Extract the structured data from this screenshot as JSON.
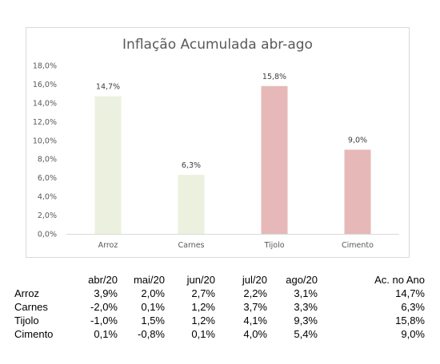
{
  "chart_data": {
    "type": "bar",
    "title": "Inflação Acumulada abr-ago",
    "categories": [
      "Arroz",
      "Carnes",
      "Tijolo",
      "Cimento"
    ],
    "values": [
      14.7,
      6.3,
      15.8,
      9.0
    ],
    "data_labels": [
      "14,7%",
      "6,3%",
      "15,8%",
      "9,0%"
    ],
    "bar_colors": [
      "#ebf1de",
      "#ebf1de",
      "#e6b9b8",
      "#e6b9b8"
    ],
    "ylim": [
      0,
      18
    ],
    "yticks": [
      0,
      2,
      4,
      6,
      8,
      10,
      12,
      14,
      16,
      18
    ],
    "ytick_labels": [
      "0,0%",
      "2,0%",
      "4,0%",
      "6,0%",
      "8,0%",
      "10,0%",
      "12,0%",
      "14,0%",
      "16,0%",
      "18,0%"
    ],
    "grid": false,
    "legend": "none"
  },
  "table": {
    "columns": [
      "abr/20",
      "mai/20",
      "jun/20",
      "jul/20",
      "ago/20",
      "Ac. no Ano"
    ],
    "rows": [
      {
        "label": "Arroz",
        "values": [
          "3,9%",
          "2,0%",
          "2,7%",
          "2,2%",
          "3,1%",
          "14,7%"
        ]
      },
      {
        "label": "Carnes",
        "values": [
          "-2,0%",
          "0,1%",
          "1,2%",
          "3,7%",
          "3,3%",
          "6,3%"
        ]
      },
      {
        "label": "Tijolo",
        "values": [
          "-1,0%",
          "1,5%",
          "1,2%",
          "4,1%",
          "9,3%",
          "15,8%"
        ]
      },
      {
        "label": "Cimento",
        "values": [
          "0,1%",
          "-0,8%",
          "0,1%",
          "4,0%",
          "5,4%",
          "9,0%"
        ]
      }
    ]
  }
}
